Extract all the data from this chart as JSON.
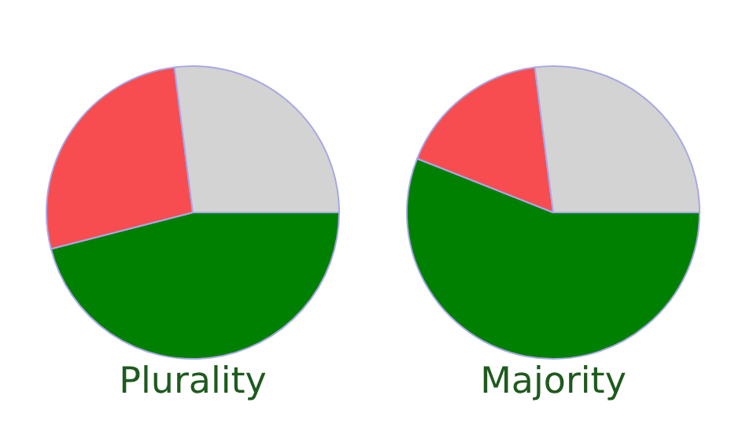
{
  "chart_data": [
    {
      "type": "pie",
      "title": "Plurality",
      "categories": [
        null,
        null,
        null
      ],
      "values": [
        46,
        27,
        27
      ],
      "colors": [
        "#008000",
        "#f74d50",
        "#d3d3d3"
      ]
    },
    {
      "type": "pie",
      "title": "Majority",
      "categories": [
        null,
        null,
        null
      ],
      "values": [
        56,
        17,
        27
      ],
      "colors": [
        "#008000",
        "#f74d50",
        "#d3d3d3"
      ]
    }
  ]
}
